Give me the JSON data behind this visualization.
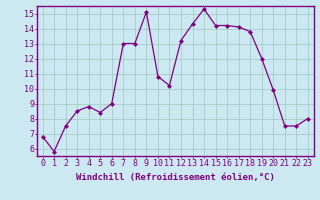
{
  "hours": [
    0,
    1,
    2,
    3,
    4,
    5,
    6,
    7,
    8,
    9,
    10,
    11,
    12,
    13,
    14,
    15,
    16,
    17,
    18,
    19,
    20,
    21,
    22,
    23
  ],
  "values": [
    6.8,
    5.8,
    7.5,
    8.5,
    8.8,
    8.4,
    9.0,
    13.0,
    13.0,
    15.1,
    10.8,
    10.2,
    13.2,
    14.3,
    15.3,
    14.2,
    14.2,
    14.1,
    13.8,
    12.0,
    9.9,
    7.5,
    7.5,
    8.0
  ],
  "line_color": "#800080",
  "marker": "D",
  "marker_size": 2.0,
  "line_width": 0.9,
  "bg_color": "#cce8f0",
  "grid_color": "#a0c8c0",
  "xlabel": "Windchill (Refroidissement éolien,°C)",
  "ylim": [
    5.5,
    15.5
  ],
  "yticks": [
    6,
    7,
    8,
    9,
    10,
    11,
    12,
    13,
    14,
    15
  ],
  "xtick_labels": [
    "0",
    "1",
    "2",
    "3",
    "4",
    "5",
    "6",
    "7",
    "8",
    "9",
    "10",
    "11",
    "12",
    "13",
    "14",
    "15",
    "16",
    "17",
    "18",
    "19",
    "20",
    "21",
    "22",
    "23"
  ],
  "xlabel_fontsize": 6.5,
  "tick_fontsize": 6.0,
  "border_color": "#800080"
}
